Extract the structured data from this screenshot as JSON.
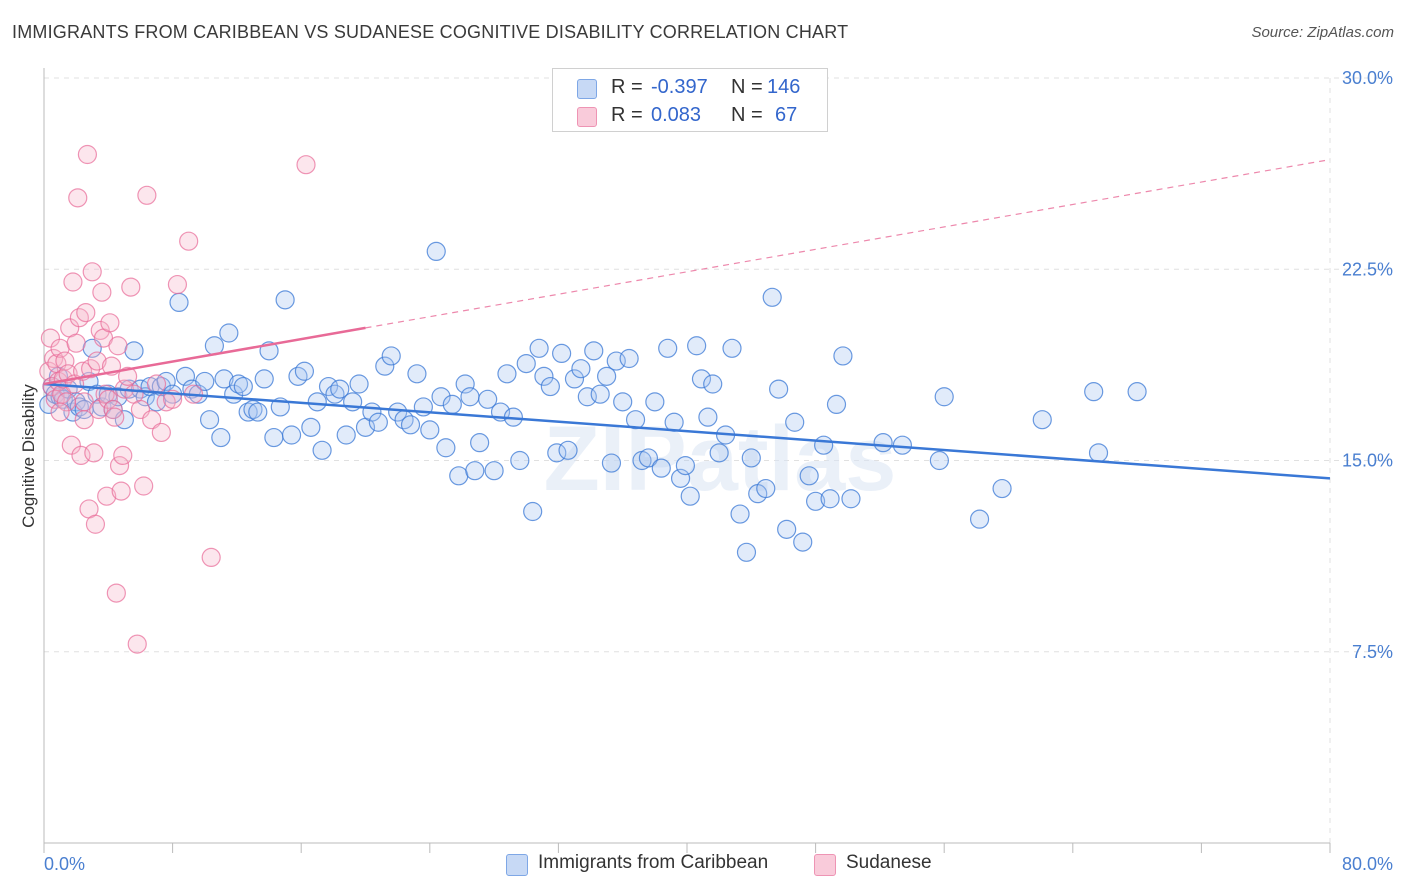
{
  "title": "IMMIGRANTS FROM CARIBBEAN VS SUDANESE COGNITIVE DISABILITY CORRELATION CHART",
  "source": "Source: ZipAtlas.com",
  "watermark": "ZIPatlas",
  "legend": {
    "rows": [
      {
        "r_label": "R =",
        "r_value": "-0.397",
        "n_label": "N =",
        "n_value": "146"
      },
      {
        "r_label": "R =",
        "r_value": "0.083",
        "n_label": "N =",
        "n_value": "67"
      }
    ]
  },
  "colors": {
    "blue": "#3a78d6",
    "blue_fill": "#a9c6f0",
    "pink": "#e86a97",
    "pink_fill": "#f5b6cb",
    "axis_label": "#4a7fd0",
    "grid": "#e0e0e0"
  },
  "chart_data": {
    "type": "scatter",
    "ylabel": "Cognitive Disability",
    "xlim": [
      0,
      80
    ],
    "ylim": [
      0,
      30
    ],
    "x_tick_labels": [
      "0.0%",
      "80.0%"
    ],
    "y_ticks": [
      7.5,
      15.0,
      22.5,
      30.0
    ],
    "y_tick_labels": [
      "7.5%",
      "15.0%",
      "22.5%",
      "30.0%"
    ],
    "grid": true,
    "legend_position": "top-center",
    "series": [
      {
        "name": "Immigrants from Caribbean",
        "color": "#3a78d6",
        "trend": {
          "x": [
            0,
            80
          ],
          "y": [
            18.0,
            14.3
          ],
          "style": "solid"
        },
        "points": [
          [
            0.3,
            17.2
          ],
          [
            0.5,
            17.9
          ],
          [
            0.7,
            17.6
          ],
          [
            0.9,
            18.3
          ],
          [
            1.0,
            17.5
          ],
          [
            1.2,
            17.4
          ],
          [
            1.5,
            17.8
          ],
          [
            1.8,
            16.9
          ],
          [
            2.0,
            17.3
          ],
          [
            2.2,
            17.1
          ],
          [
            2.5,
            17.0
          ],
          [
            2.8,
            18.1
          ],
          [
            3.0,
            19.4
          ],
          [
            3.3,
            17.6
          ],
          [
            3.6,
            17.1
          ],
          [
            4.0,
            17.6
          ],
          [
            4.3,
            17.0
          ],
          [
            4.6,
            17.5
          ],
          [
            5.0,
            16.6
          ],
          [
            5.3,
            17.8
          ],
          [
            5.6,
            19.3
          ],
          [
            6.0,
            17.8
          ],
          [
            6.3,
            17.5
          ],
          [
            6.6,
            17.9
          ],
          [
            7.0,
            17.3
          ],
          [
            7.3,
            17.9
          ],
          [
            7.6,
            18.1
          ],
          [
            8.0,
            17.6
          ],
          [
            8.4,
            21.2
          ],
          [
            8.8,
            18.3
          ],
          [
            9.2,
            17.8
          ],
          [
            9.6,
            17.6
          ],
          [
            10.0,
            18.1
          ],
          [
            10.3,
            16.6
          ],
          [
            10.6,
            19.5
          ],
          [
            11.0,
            15.9
          ],
          [
            11.2,
            18.2
          ],
          [
            11.5,
            20.0
          ],
          [
            11.8,
            17.6
          ],
          [
            12.1,
            18.0
          ],
          [
            12.4,
            17.9
          ],
          [
            12.7,
            16.9
          ],
          [
            13.0,
            17.0
          ],
          [
            13.3,
            16.9
          ],
          [
            13.7,
            18.2
          ],
          [
            14.0,
            19.3
          ],
          [
            14.3,
            15.9
          ],
          [
            14.7,
            17.1
          ],
          [
            15.0,
            21.3
          ],
          [
            15.4,
            16.0
          ],
          [
            15.8,
            18.3
          ],
          [
            16.2,
            18.5
          ],
          [
            16.6,
            16.3
          ],
          [
            17.0,
            17.3
          ],
          [
            17.3,
            15.4
          ],
          [
            17.7,
            17.9
          ],
          [
            18.1,
            17.6
          ],
          [
            18.4,
            17.8
          ],
          [
            18.8,
            16.0
          ],
          [
            19.2,
            17.3
          ],
          [
            19.6,
            18.0
          ],
          [
            20.0,
            16.3
          ],
          [
            20.4,
            16.9
          ],
          [
            20.8,
            16.5
          ],
          [
            21.2,
            18.7
          ],
          [
            21.6,
            19.1
          ],
          [
            22.0,
            16.9
          ],
          [
            22.4,
            16.6
          ],
          [
            22.8,
            16.4
          ],
          [
            23.2,
            18.4
          ],
          [
            23.6,
            17.1
          ],
          [
            24.0,
            16.2
          ],
          [
            24.4,
            23.2
          ],
          [
            24.7,
            17.5
          ],
          [
            25.0,
            15.5
          ],
          [
            25.4,
            17.2
          ],
          [
            25.8,
            14.4
          ],
          [
            26.2,
            18.0
          ],
          [
            26.5,
            17.5
          ],
          [
            26.8,
            14.6
          ],
          [
            27.1,
            15.7
          ],
          [
            27.6,
            17.4
          ],
          [
            28.0,
            14.6
          ],
          [
            28.4,
            16.9
          ],
          [
            28.8,
            18.4
          ],
          [
            29.2,
            16.7
          ],
          [
            29.6,
            15.0
          ],
          [
            30.0,
            18.8
          ],
          [
            30.4,
            13.0
          ],
          [
            30.8,
            19.4
          ],
          [
            31.1,
            18.3
          ],
          [
            31.5,
            17.9
          ],
          [
            31.9,
            15.3
          ],
          [
            32.2,
            19.2
          ],
          [
            32.6,
            15.4
          ],
          [
            33.0,
            18.2
          ],
          [
            33.4,
            18.6
          ],
          [
            33.8,
            17.5
          ],
          [
            34.2,
            19.3
          ],
          [
            34.6,
            17.6
          ],
          [
            35.0,
            18.3
          ],
          [
            35.3,
            14.9
          ],
          [
            35.6,
            18.9
          ],
          [
            36.0,
            17.3
          ],
          [
            36.4,
            19.0
          ],
          [
            36.8,
            16.6
          ],
          [
            37.2,
            15.0
          ],
          [
            37.6,
            15.1
          ],
          [
            38.0,
            17.3
          ],
          [
            38.4,
            14.7
          ],
          [
            38.8,
            19.4
          ],
          [
            39.2,
            16.5
          ],
          [
            39.6,
            14.3
          ],
          [
            39.9,
            14.8
          ],
          [
            40.2,
            13.6
          ],
          [
            40.6,
            19.5
          ],
          [
            40.9,
            18.2
          ],
          [
            41.3,
            16.7
          ],
          [
            41.6,
            18.0
          ],
          [
            42.0,
            15.3
          ],
          [
            42.4,
            16.0
          ],
          [
            42.8,
            19.4
          ],
          [
            43.3,
            12.9
          ],
          [
            43.7,
            11.4
          ],
          [
            44.0,
            15.1
          ],
          [
            44.4,
            13.7
          ],
          [
            44.9,
            13.9
          ],
          [
            45.3,
            21.4
          ],
          [
            45.7,
            17.8
          ],
          [
            46.2,
            12.3
          ],
          [
            46.7,
            16.5
          ],
          [
            47.2,
            11.8
          ],
          [
            47.6,
            14.4
          ],
          [
            48.0,
            13.4
          ],
          [
            48.5,
            15.6
          ],
          [
            48.9,
            13.5
          ],
          [
            49.3,
            17.2
          ],
          [
            49.7,
            19.1
          ],
          [
            50.2,
            13.5
          ],
          [
            52.2,
            15.7
          ],
          [
            53.4,
            15.6
          ],
          [
            55.7,
            15.0
          ],
          [
            56.0,
            17.5
          ],
          [
            58.2,
            12.7
          ],
          [
            59.6,
            13.9
          ],
          [
            62.1,
            16.6
          ],
          [
            65.3,
            17.7
          ],
          [
            65.6,
            15.3
          ],
          [
            68.0,
            17.7
          ]
        ]
      },
      {
        "name": "Sudanese",
        "color": "#e86a97",
        "trend": {
          "x": [
            0,
            80
          ],
          "y": [
            18.0,
            26.8
          ],
          "style": "solid to 20, dashed beyond",
          "solid_until": 20
        },
        "points": [
          [
            0.3,
            18.5
          ],
          [
            0.4,
            19.8
          ],
          [
            0.5,
            17.9
          ],
          [
            0.6,
            19.0
          ],
          [
            0.7,
            17.4
          ],
          [
            0.8,
            18.8
          ],
          [
            0.9,
            18.1
          ],
          [
            1.0,
            19.4
          ],
          [
            1.1,
            17.6
          ],
          [
            1.2,
            18.2
          ],
          [
            1.3,
            18.9
          ],
          [
            1.4,
            17.3
          ],
          [
            1.5,
            18.4
          ],
          [
            1.6,
            20.2
          ],
          [
            1.7,
            15.6
          ],
          [
            1.8,
            22.0
          ],
          [
            1.9,
            18.0
          ],
          [
            2.0,
            19.6
          ],
          [
            2.1,
            25.3
          ],
          [
            2.2,
            20.6
          ],
          [
            2.3,
            15.2
          ],
          [
            2.4,
            18.5
          ],
          [
            2.5,
            17.3
          ],
          [
            2.6,
            20.8
          ],
          [
            2.7,
            27.0
          ],
          [
            2.8,
            13.1
          ],
          [
            2.9,
            18.6
          ],
          [
            3.0,
            22.4
          ],
          [
            3.1,
            15.3
          ],
          [
            3.2,
            12.5
          ],
          [
            3.3,
            18.9
          ],
          [
            3.4,
            17.0
          ],
          [
            3.5,
            20.1
          ],
          [
            3.6,
            21.6
          ],
          [
            3.7,
            19.8
          ],
          [
            3.8,
            17.6
          ],
          [
            3.9,
            13.6
          ],
          [
            4.0,
            17.4
          ],
          [
            4.1,
            20.4
          ],
          [
            4.2,
            18.7
          ],
          [
            4.3,
            17.0
          ],
          [
            4.4,
            16.7
          ],
          [
            4.5,
            9.8
          ],
          [
            4.6,
            19.5
          ],
          [
            4.7,
            14.8
          ],
          [
            4.8,
            13.8
          ],
          [
            4.9,
            15.2
          ],
          [
            5.0,
            17.8
          ],
          [
            5.2,
            18.3
          ],
          [
            5.4,
            21.8
          ],
          [
            5.6,
            17.6
          ],
          [
            5.8,
            7.8
          ],
          [
            6.0,
            17.0
          ],
          [
            6.2,
            14.0
          ],
          [
            6.4,
            25.4
          ],
          [
            6.7,
            16.6
          ],
          [
            7.0,
            18.0
          ],
          [
            7.3,
            16.1
          ],
          [
            7.6,
            17.3
          ],
          [
            8.0,
            17.4
          ],
          [
            8.3,
            21.9
          ],
          [
            9.0,
            23.6
          ],
          [
            9.3,
            17.6
          ],
          [
            10.4,
            11.2
          ],
          [
            16.3,
            26.6
          ],
          [
            1.0,
            16.9
          ],
          [
            2.5,
            16.6
          ]
        ]
      }
    ]
  },
  "bottom_legend": [
    "Immigrants from Caribbean",
    "Sudanese"
  ]
}
